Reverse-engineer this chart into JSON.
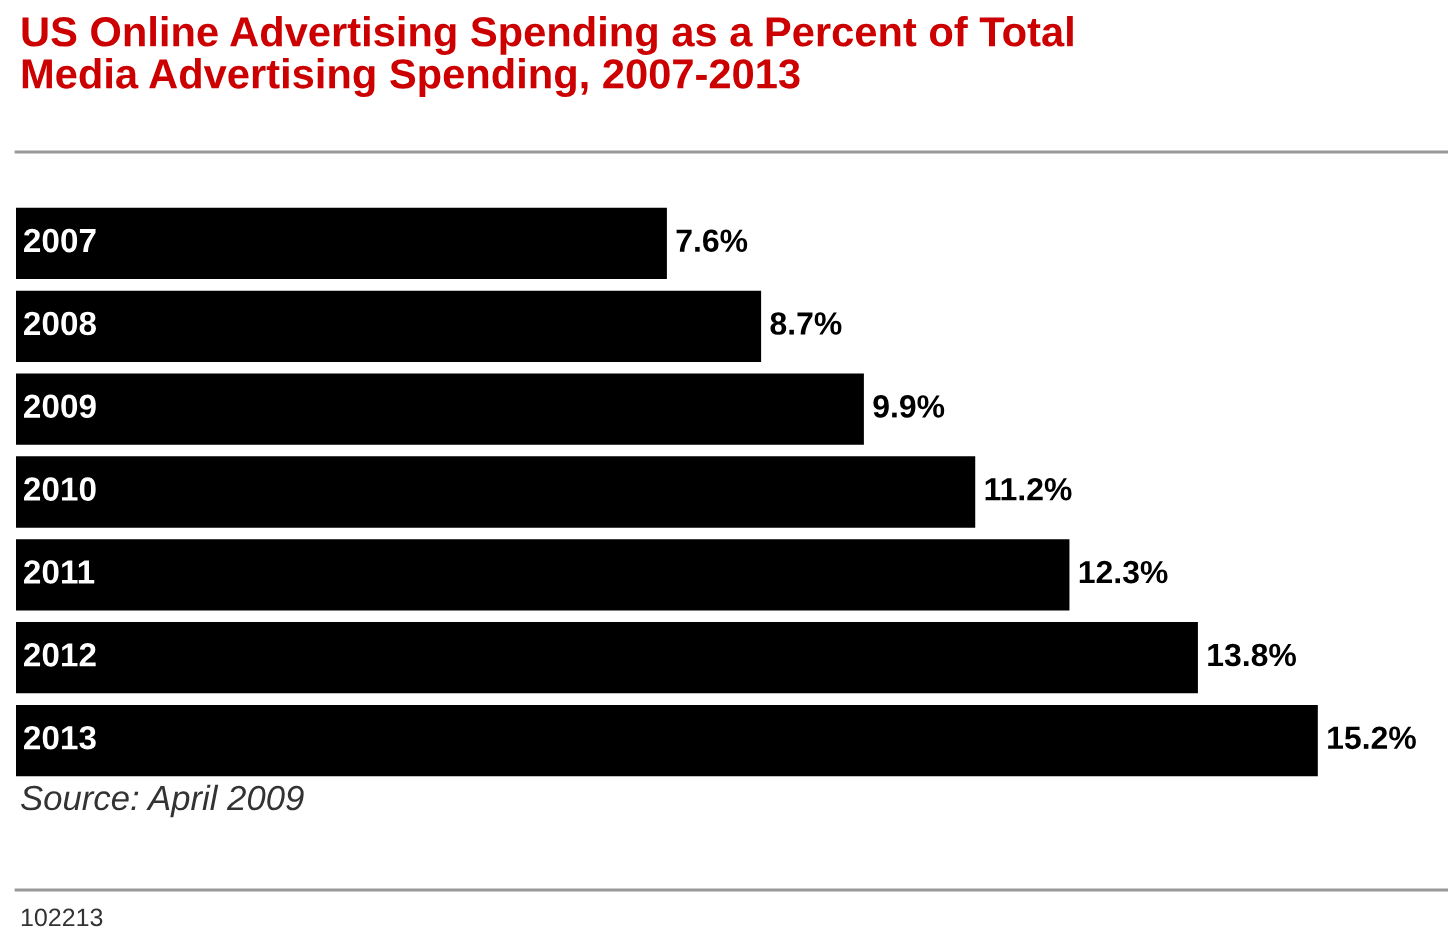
{
  "chart_data": {
    "type": "bar",
    "orientation": "horizontal",
    "title": "US Online Advertising Spending as a Percent of Total\nMedia Advertising Spending, 2007-2013",
    "categories": [
      "2007",
      "2008",
      "2009",
      "2010",
      "2011",
      "2012",
      "2013"
    ],
    "values": [
      7.6,
      8.7,
      9.9,
      11.2,
      12.3,
      13.8,
      15.2
    ],
    "value_labels": [
      "7.6%",
      "8.7%",
      "9.9%",
      "11.2%",
      "12.3%",
      "13.8%",
      "15.2%"
    ],
    "color": "#000000",
    "annotations": [
      "Source: April 2009",
      "102213"
    ]
  }
}
